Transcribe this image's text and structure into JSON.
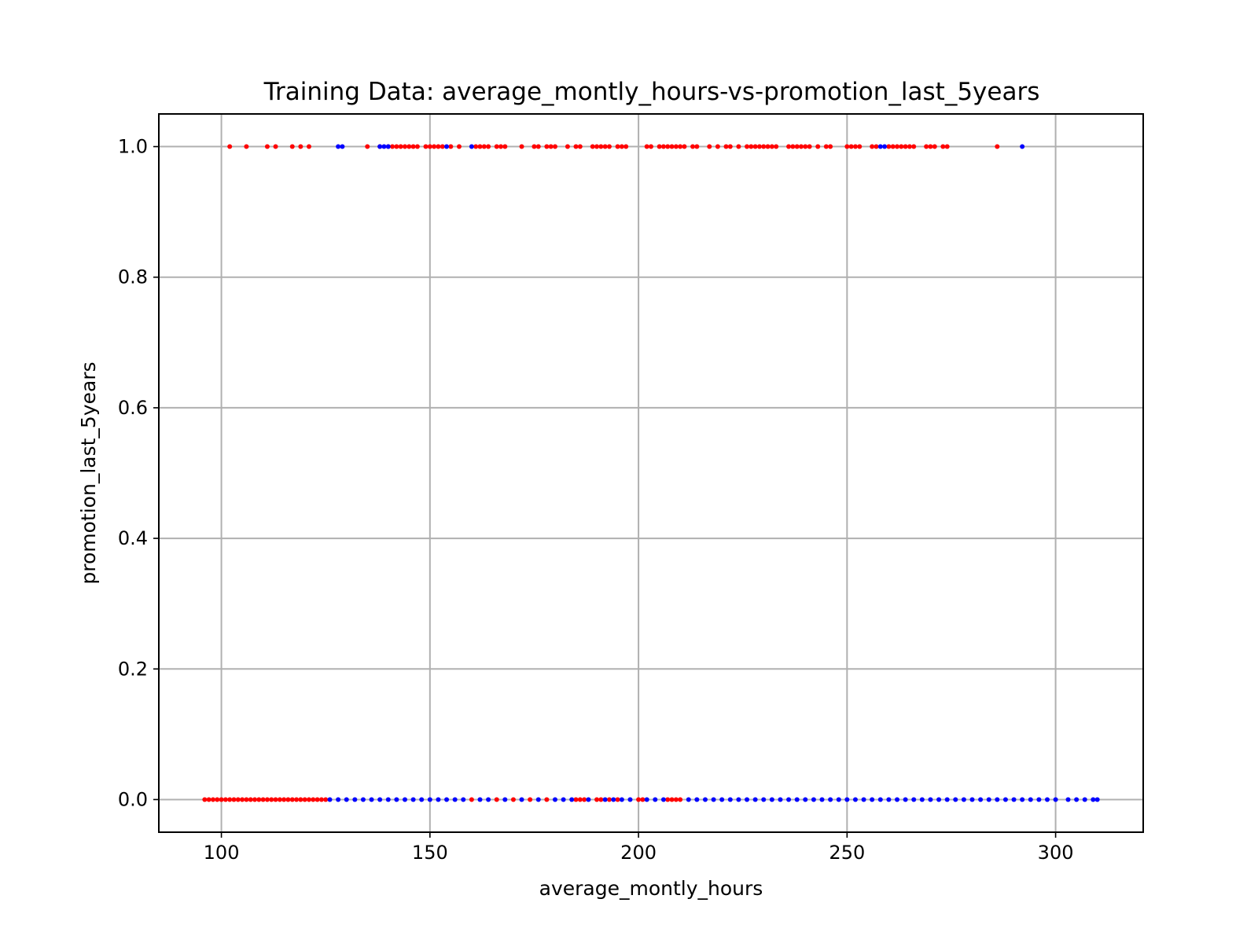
{
  "chart_data": {
    "type": "scatter",
    "title": "Training Data: average_montly_hours-vs-promotion_last_5years",
    "xlabel": "average_montly_hours",
    "ylabel": "promotion_last_5years",
    "xlim": [
      85,
      321
    ],
    "ylim": [
      -0.05,
      1.05
    ],
    "x_ticks": [
      100,
      150,
      200,
      250,
      300
    ],
    "x_tick_labels": [
      "100",
      "150",
      "200",
      "250",
      "300"
    ],
    "y_ticks": [
      0.0,
      0.2,
      0.4,
      0.6,
      0.8,
      1.0
    ],
    "y_tick_labels": [
      "0.0",
      "0.2",
      "0.4",
      "0.6",
      "0.8",
      "1.0"
    ],
    "grid": true,
    "legend": "none",
    "series": [
      {
        "color": "#ff0000",
        "points_y1": [
          102,
          106,
          111,
          113,
          117,
          119,
          121,
          135,
          138,
          140,
          141,
          142,
          143,
          144,
          145,
          146,
          147,
          149,
          150,
          151,
          152,
          153,
          155,
          157,
          161,
          162,
          163,
          164,
          166,
          167,
          168,
          172,
          175,
          176,
          178,
          179,
          180,
          183,
          185,
          186,
          189,
          190,
          191,
          192,
          193,
          195,
          196,
          197,
          202,
          203,
          205,
          206,
          207,
          208,
          209,
          210,
          211,
          213,
          214,
          217,
          219,
          221,
          222,
          224,
          226,
          227,
          228,
          229,
          230,
          231,
          232,
          233,
          236,
          237,
          238,
          239,
          240,
          241,
          243,
          245,
          246,
          250,
          251,
          252,
          253,
          256,
          257,
          260,
          261,
          262,
          263,
          264,
          265,
          266,
          269,
          270,
          271,
          273,
          274,
          286
        ],
        "points_y0": [
          96,
          97,
          98,
          99,
          100,
          101,
          102,
          103,
          104,
          105,
          106,
          107,
          108,
          109,
          110,
          111,
          112,
          113,
          114,
          115,
          116,
          117,
          118,
          119,
          120,
          121,
          122,
          123,
          124,
          125,
          160,
          166,
          170,
          174,
          178,
          185,
          186,
          187,
          190,
          191,
          193,
          195,
          200,
          201,
          207,
          208,
          209,
          210
        ]
      },
      {
        "color": "#0000ff",
        "points_y1": [
          128,
          129,
          138,
          139,
          140,
          154,
          160,
          258,
          259,
          292
        ],
        "points_y0": [
          126,
          128,
          130,
          132,
          134,
          136,
          138,
          140,
          142,
          144,
          146,
          148,
          150,
          152,
          154,
          156,
          158,
          162,
          164,
          168,
          172,
          176,
          180,
          182,
          184,
          188,
          192,
          194,
          196,
          198,
          202,
          204,
          206,
          212,
          214,
          216,
          218,
          220,
          222,
          224,
          226,
          228,
          230,
          232,
          234,
          236,
          238,
          240,
          242,
          244,
          246,
          248,
          250,
          252,
          254,
          256,
          258,
          260,
          262,
          264,
          266,
          268,
          270,
          272,
          274,
          276,
          278,
          280,
          282,
          284,
          286,
          288,
          290,
          292,
          294,
          296,
          298,
          300,
          303,
          305,
          307,
          309,
          310
        ]
      }
    ]
  }
}
